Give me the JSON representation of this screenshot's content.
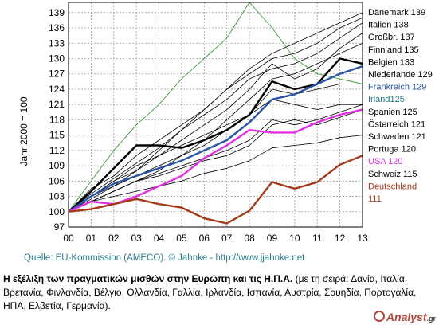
{
  "chart_data": {
    "type": "line",
    "title": "",
    "ylabel": "Jahr 2000 = 100",
    "xlabel": "",
    "x": [
      "00",
      "01",
      "02",
      "03",
      "04",
      "05",
      "06",
      "07",
      "08",
      "09",
      "10",
      "11",
      "12",
      "13"
    ],
    "ylim": [
      97,
      141
    ],
    "yticks": [
      97,
      100,
      103,
      106,
      109,
      112,
      115,
      118,
      121,
      124,
      127,
      130,
      133,
      136,
      139
    ],
    "grid": true,
    "legend_placement": "right",
    "colors": {
      "grid": "#9a9a9a",
      "thin": "#000000",
      "green": "#3a9a3a",
      "blue": "#2a55a8",
      "magenta": "#e030e0",
      "brown": "#a33a1a",
      "teal": "#2a7a8a"
    },
    "series": [
      {
        "name": "Dänemark 139",
        "color": "#000000",
        "width": 0.8,
        "values": [
          100,
          104.5,
          107,
          111,
          114,
          117,
          120,
          124,
          128,
          131,
          133,
          135,
          137,
          139
        ]
      },
      {
        "name": "Italien 138",
        "color": "#000000",
        "width": 0.8,
        "values": [
          100,
          103,
          106,
          108,
          112,
          116,
          120,
          124,
          127,
          130,
          131,
          133,
          136,
          138
        ]
      },
      {
        "name": "Großbr. 137",
        "color": "#000000",
        "width": 0.8,
        "values": [
          100,
          103.5,
          106.5,
          109.5,
          112.5,
          116,
          119,
          122,
          126,
          128,
          129,
          131,
          134,
          137
        ]
      },
      {
        "name": "Finnland 135",
        "color": "#000000",
        "width": 0.8,
        "values": [
          100,
          103,
          105,
          108,
          111,
          114,
          117,
          120,
          124,
          129,
          126,
          128,
          132,
          135
        ]
      },
      {
        "name": "Belgien 133",
        "color": "#000000",
        "width": 0.8,
        "values": [
          100,
          102,
          104,
          106,
          108,
          111,
          114,
          118,
          122,
          126,
          127,
          129,
          131,
          133
        ]
      },
      {
        "name": "Niederlande 129",
        "color": "#000000",
        "width": 2.4,
        "values": [
          100,
          104,
          108.5,
          113,
          113,
          112.5,
          114,
          116,
          119,
          125.5,
          124,
          125,
          130,
          129
        ]
      },
      {
        "name": "Frankreich 129",
        "color": "#2a55a8",
        "width": 2.4,
        "values": [
          100,
          103,
          105.5,
          107,
          108.5,
          110,
          112,
          114,
          117.5,
          122,
          123,
          125,
          127,
          128.5
        ]
      },
      {
        "name": "Irland 125",
        "color": "#3a9a3a",
        "width": 0.9,
        "values": [
          100,
          106,
          112,
          117,
          121,
          126,
          130,
          134,
          141,
          136,
          130,
          127,
          126,
          125
        ]
      },
      {
        "name": "Spanien 125",
        "color": "#000000",
        "width": 0.8,
        "values": [
          100,
          102.5,
          105,
          107,
          109,
          111,
          113,
          116,
          119,
          124,
          123,
          124,
          125,
          125
        ]
      },
      {
        "name": "Österreich 121",
        "color": "#000000",
        "width": 0.8,
        "values": [
          100,
          102,
          104,
          106,
          107.5,
          109,
          110.5,
          112,
          114,
          118,
          117,
          118,
          119.5,
          121
        ]
      },
      {
        "name": "Schweden 121",
        "color": "#000000",
        "width": 0.8,
        "values": [
          100,
          103,
          106,
          109,
          111,
          113,
          115,
          117,
          119,
          122,
          121,
          120,
          121,
          121
        ]
      },
      {
        "name": "Portuga   120",
        "color": "#000000",
        "width": 0.8,
        "values": [
          100,
          102,
          104,
          106,
          107,
          108.5,
          110,
          111,
          113,
          117,
          118,
          117,
          118.5,
          120
        ]
      },
      {
        "name": "USA 120",
        "color": "#e030e0",
        "width": 2.4,
        "values": [
          100,
          102,
          101.5,
          103,
          105,
          107,
          110.5,
          113,
          116,
          115.5,
          115.5,
          117.5,
          119,
          120
        ]
      },
      {
        "name": "Schweiz 115",
        "color": "#000000",
        "width": 0.8,
        "values": [
          100,
          102,
          103,
          104,
          105,
          106,
          107.5,
          108.5,
          110,
          112.5,
          113,
          113.5,
          114.5,
          115
        ]
      },
      {
        "name": "Deutschland 111",
        "color": "#a33a1a",
        "width": 2.4,
        "values": [
          100,
          100.5,
          101.5,
          102.5,
          101.5,
          100.8,
          98.7,
          97.7,
          100.2,
          105.8,
          104.5,
          105.8,
          109.2,
          111
        ]
      }
    ],
    "legend": [
      {
        "text": "Dänemark 139",
        "color": "#000000"
      },
      {
        "text": "Italien 138",
        "color": "#000000"
      },
      {
        "text": "Großbr. 137",
        "color": "#000000"
      },
      {
        "text": "Finnland 135",
        "color": "#000000"
      },
      {
        "text": "Belgien 133",
        "color": "#000000"
      },
      {
        "text": "Niederlande 129",
        "color": "#000000"
      },
      {
        "text": "Frankreich 129",
        "color": "#2a55a8"
      },
      {
        "text": "Irland125",
        "color": "#2a7a8a"
      },
      {
        "text": "Spanien 125",
        "color": "#000000"
      },
      {
        "text": "Österreich 121",
        "color": "#000000"
      },
      {
        "text": "Schweden 121",
        "color": "#000000"
      },
      {
        "text": "Portuga   120",
        "color": "#000000"
      },
      {
        "text": "USA 120",
        "color": "#e030e0"
      },
      {
        "text": "Schweiz 115",
        "color": "#000000"
      },
      {
        "text": "Deutschland",
        "color": "#a33a1a"
      },
      {
        "text": "111",
        "color": "#a33a1a"
      }
    ]
  },
  "source": "Quelle: EU-Kommission (AMECO). © Jahnke - http://www.jjahnke.net",
  "caption": {
    "bold": "Η εξέλιξη των πραγματικών μισθών στην Ευρώπη και τις Η.Π.Α.",
    "normal": " (με τη σειρά: Δανία, Ιταλία, Βρετανία, Φινλανδία, Βέλγιο, Ολλανδία, Γαλλία, Ιρλανδία, Ισπανία, Αυστρία, Σουηδία, Πορτογαλία, ΗΠΑ, Ελβετία, Γερμανία)."
  },
  "logo": {
    "name": "Analyst",
    "suffix": ".gr"
  }
}
